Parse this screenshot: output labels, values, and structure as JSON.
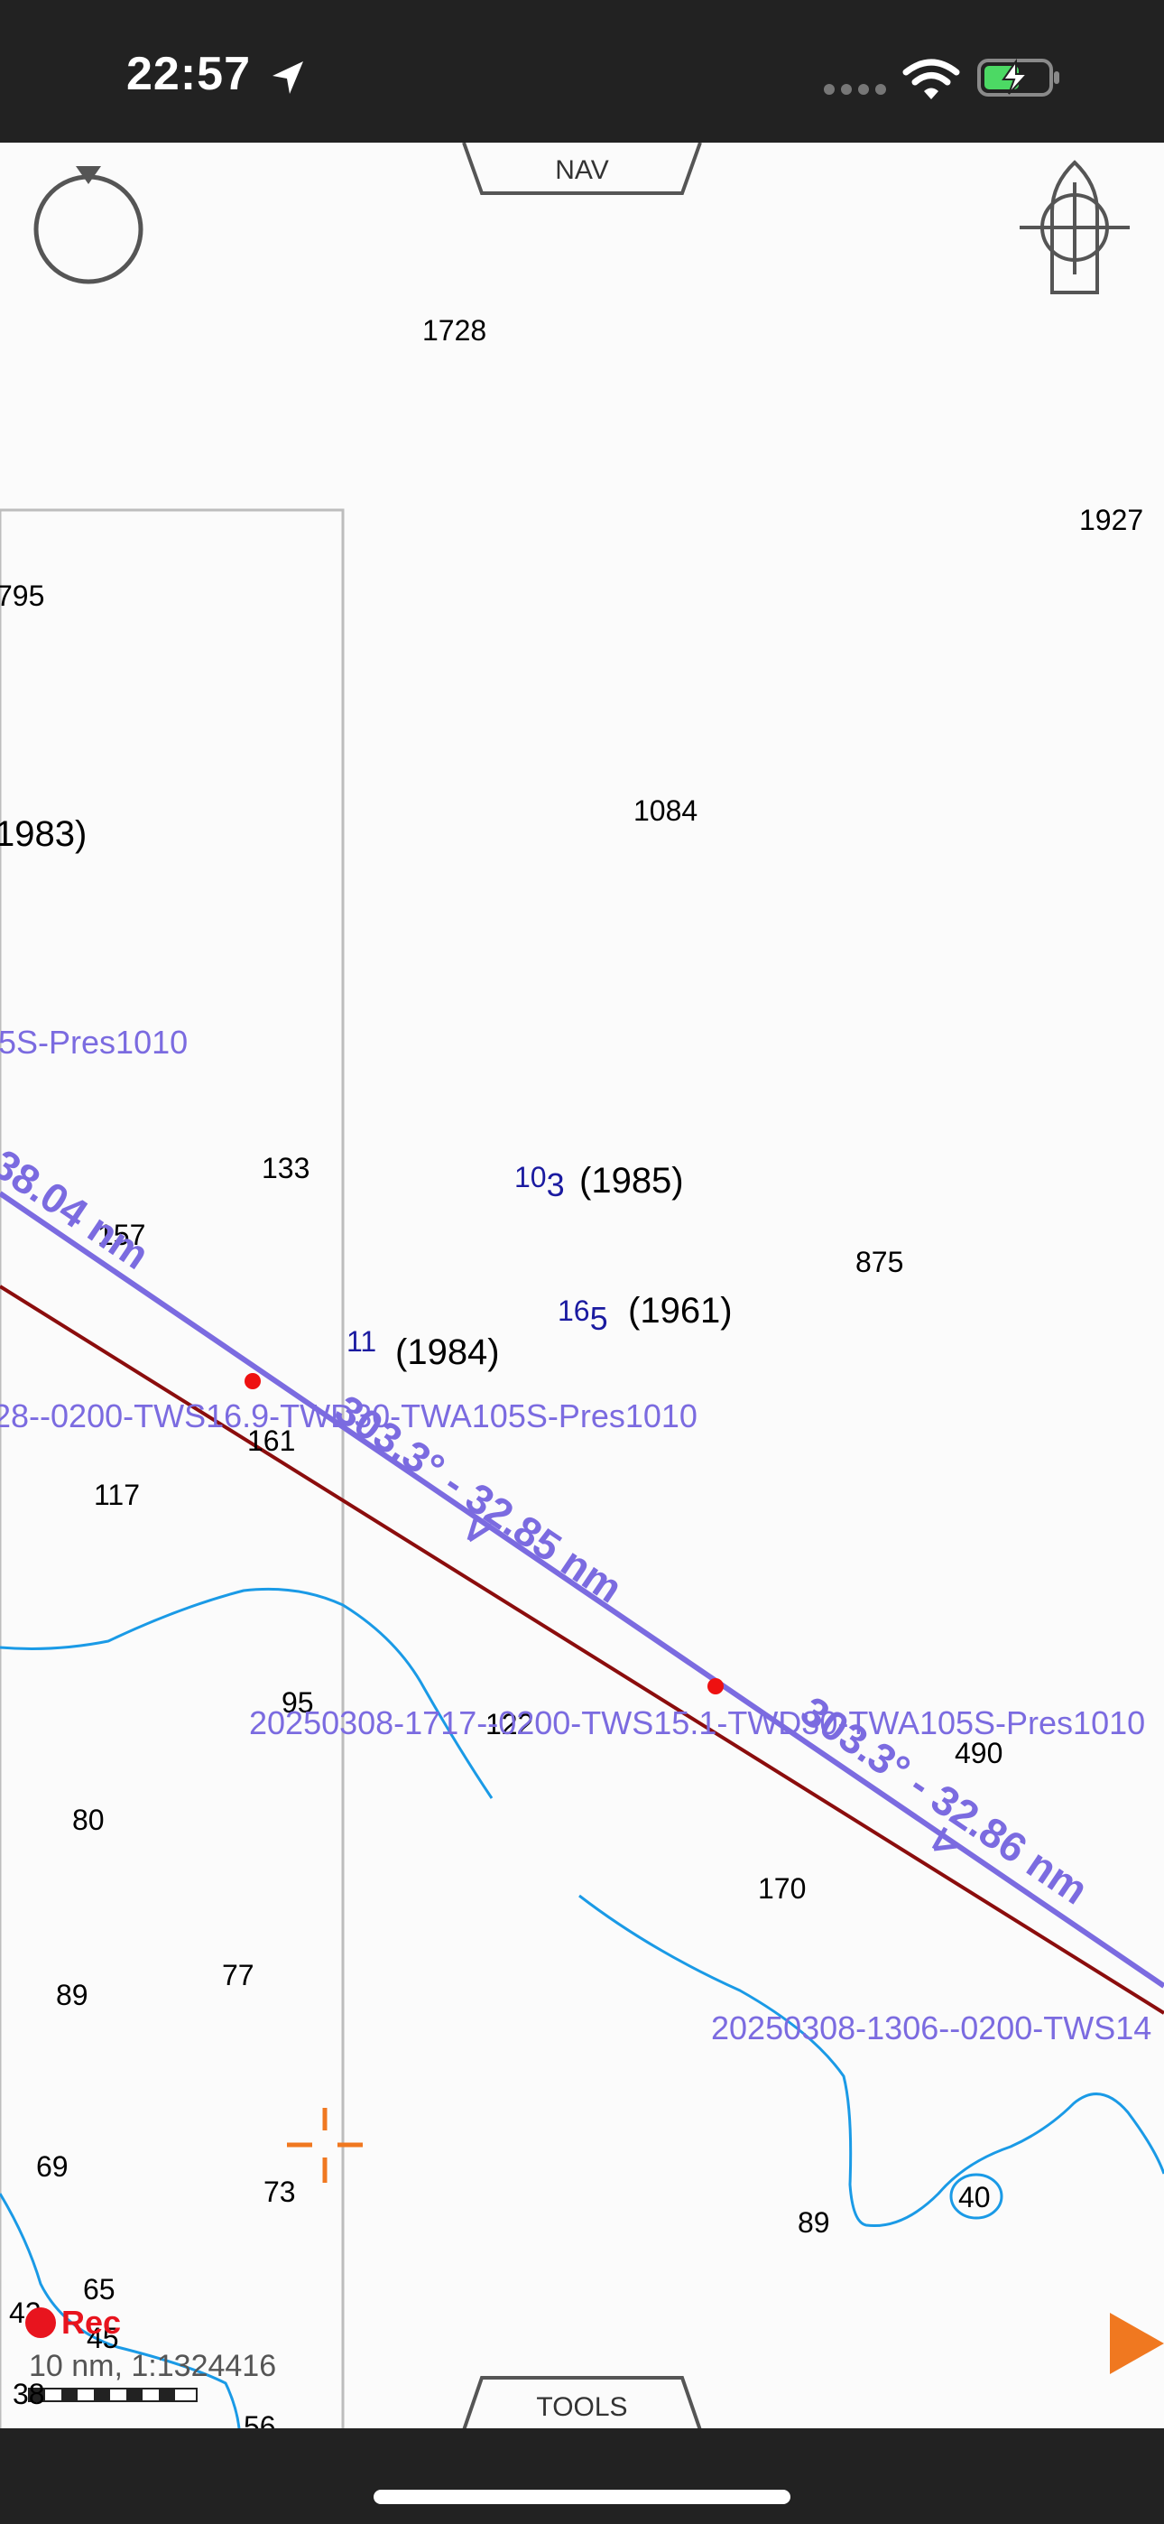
{
  "status_bar": {
    "time": "22:57",
    "icons": [
      "location-arrow-icon",
      "signal-dots-icon",
      "wifi-icon",
      "battery-charging-icon"
    ]
  },
  "top_tab": {
    "label": "NAV"
  },
  "bottom_tab": {
    "label": "TOOLS"
  },
  "map": {
    "depths": [
      "1728",
      "1927",
      "795",
      "1084",
      "133",
      "875",
      "157",
      "161",
      "117",
      "95",
      "122",
      "490",
      "80",
      "170",
      "89",
      "77",
      "69",
      "73",
      "89",
      "40",
      "65",
      "42",
      "45",
      "38",
      "56"
    ],
    "years": [
      "1983)",
      "(1985)",
      "(1961)",
      "(1984)"
    ],
    "soundings": [
      {
        "main": "10",
        "sub": "3"
      },
      {
        "main": "16",
        "sub": "5"
      },
      {
        "main": "11",
        "sub": ""
      }
    ],
    "route_labels": [
      "5S-Pres1010",
      "28--0200-TWS16.9-TWD30-TWA105S-Pres1010",
      "20250308-1717--0200-TWS15.1-TWD30-TWA105S-Pres1010",
      "20250308-1306--0200-TWS14"
    ],
    "leg_labels": [
      "38.04 nm",
      "303.3° - 32.85 nm",
      "303.3° - 32.86 nm"
    ]
  },
  "recording": {
    "label": "Rec"
  },
  "scale": {
    "text": "10 nm, 1:1324416"
  },
  "colors": {
    "route": "#7b6be0",
    "track": "#8b0d0d",
    "depth_contour": "#1a9ae6",
    "crosshair": "#f07820",
    "record": "#e8141e"
  }
}
